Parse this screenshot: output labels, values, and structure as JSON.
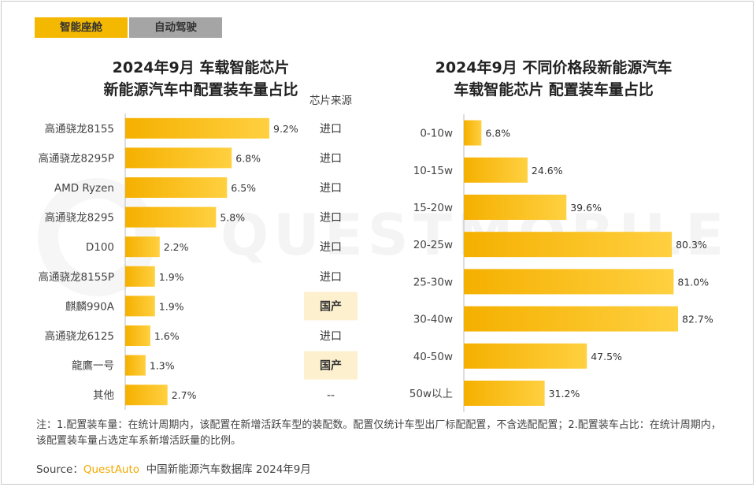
{
  "tabs": [
    {
      "label": "智能座舱",
      "active": true
    },
    {
      "label": "自动驾驶",
      "active": false
    }
  ],
  "watermark": "QUESTMOBILE",
  "colors": {
    "bar": "#f5b800",
    "bar_light": "#ffd54a",
    "active_tab": "#f5b800",
    "inactive_tab": "#a5a5a5",
    "domestic_bg": "#fdf0cf"
  },
  "chart_data": [
    {
      "type": "bar",
      "orientation": "horizontal",
      "title": "2024年9月 车载智能芯片\n新能源汽车中配置装车量占比",
      "categories": [
        "高通骁龙8155",
        "高通骁龙8295P",
        "AMD Ryzen",
        "高通骁龙8295",
        "D100",
        "高通骁龙8155P",
        "麒麟990A",
        "高通骁龙6125",
        "龍鷹一号",
        "其他"
      ],
      "values": [
        9.2,
        6.8,
        6.5,
        5.8,
        2.2,
        1.9,
        1.9,
        1.6,
        1.3,
        2.7
      ],
      "value_labels": [
        "9.2%",
        "6.8%",
        "6.5%",
        "5.8%",
        "2.2%",
        "1.9%",
        "1.9%",
        "1.6%",
        "1.3%",
        "2.7%"
      ],
      "xlim": [
        0,
        9.2
      ],
      "source_column": {
        "header": "芯片来源",
        "values": [
          "进口",
          "进口",
          "进口",
          "进口",
          "进口",
          "进口",
          "国产",
          "进口",
          "国产",
          "--"
        ],
        "highlight": [
          false,
          false,
          false,
          false,
          false,
          false,
          true,
          false,
          true,
          false
        ]
      }
    },
    {
      "type": "bar",
      "orientation": "horizontal",
      "title": "2024年9月 不同价格段新能源汽车\n车载智能芯片 配置装车量占比",
      "categories": [
        "0-10w",
        "10-15w",
        "15-20w",
        "20-25w",
        "25-30w",
        "30-40w",
        "40-50w",
        "50w以上"
      ],
      "values": [
        6.8,
        24.6,
        39.6,
        80.3,
        81.0,
        82.7,
        47.5,
        31.2
      ],
      "value_labels": [
        "6.8%",
        "24.6%",
        "39.6%",
        "80.3%",
        "81.0%",
        "82.7%",
        "47.5%",
        "31.2%"
      ],
      "xlim": [
        0,
        82.7
      ]
    }
  ],
  "note": "注：1.配置装车量：在统计周期内，该配置在新增活跃车型的装配数。配置仅统计车型出厂标配配置，不含选配配置；2.配置装车占比：在统计周期内，该配置装车量占选定车系新增活跃量的比例。",
  "source": {
    "label": "Source：",
    "brand": "QuestAuto",
    "text": "中国新能源汽车数据库 2024年9月"
  }
}
